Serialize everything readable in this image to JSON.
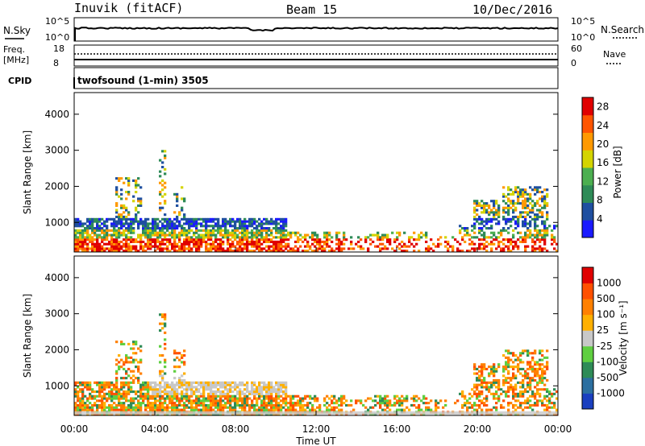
{
  "header": {
    "station": "Inuvik (fitACF)",
    "beam": "Beam 15",
    "date": "10/Dec/2016"
  },
  "panel_noise": {
    "left_label": "N.Sky",
    "right_label": "N.Search",
    "left_ticks": [
      "10^5",
      "10^0"
    ],
    "right_ticks": [
      "10^5",
      "10^0"
    ]
  },
  "panel_freq": {
    "left_label_1": "Freq.",
    "left_label_2": "[MHz]",
    "right_label": "Nave",
    "left_ticks": [
      "18",
      "8"
    ],
    "right_ticks": [
      "60",
      "0"
    ]
  },
  "panel_cpid": {
    "label": "CPID",
    "text": "twofsound (1-min) 3505"
  },
  "chart_data": [
    {
      "type": "heatmap",
      "name": "power",
      "ylabel": "Slant Range [km]",
      "yticks": [
        "1000",
        "2000",
        "3000",
        "4000"
      ],
      "ylim": [
        180,
        4600
      ],
      "colorbar_label": "Power [dB]",
      "colorbar_ticks": [
        "4",
        "8",
        "12",
        "16",
        "20",
        "24",
        "28"
      ],
      "colorbar_colors": [
        "#1a1aff",
        "#1f4fa0",
        "#2e8b57",
        "#4caf50",
        "#d4d400",
        "#ff9900",
        "#ff5500",
        "#e00000"
      ],
      "clim": [
        0,
        30
      ]
    },
    {
      "type": "heatmap",
      "name": "velocity",
      "ylabel": "Slant Range [km]",
      "yticks": [
        "1000",
        "2000",
        "3000",
        "4000"
      ],
      "ylim": [
        180,
        4600
      ],
      "colorbar_label": "Velocity [m s⁻¹]",
      "colorbar_ticks": [
        "1000",
        "500",
        "100",
        "25",
        "-25",
        "-100",
        "-500",
        "-1000"
      ],
      "colorbar_colors": [
        "#1a3fbf",
        "#2c6fa0",
        "#2e8b57",
        "#5fcf40",
        "#c8c8c8",
        "#ffb000",
        "#ff8000",
        "#ff5000",
        "#e00000"
      ],
      "xlabel": "Time UT",
      "xticks": [
        "00:00",
        "04:00",
        "08:00",
        "12:00",
        "16:00",
        "20:00",
        "00:00"
      ]
    }
  ],
  "colors": {
    "axis": "#000000",
    "background": "#ffffff"
  }
}
